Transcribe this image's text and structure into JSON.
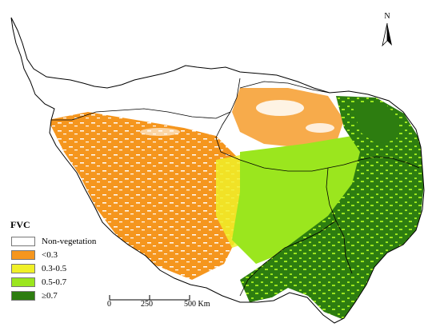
{
  "legend": {
    "title": "FVC",
    "items": [
      {
        "label": "Non-vegetation",
        "color": "#ffffff"
      },
      {
        "label": "<0.3",
        "color": "#f5961e"
      },
      {
        "label": "0.3-0.5",
        "color": "#f0f028"
      },
      {
        "label": "0.5-0.7",
        "color": "#9be61e"
      },
      {
        "label": "≥0.7",
        "color": "#2d7d10"
      }
    ]
  },
  "north_arrow": {
    "label": "N"
  },
  "scale_bar": {
    "labels": [
      "0",
      "250",
      "500 Km"
    ]
  }
}
